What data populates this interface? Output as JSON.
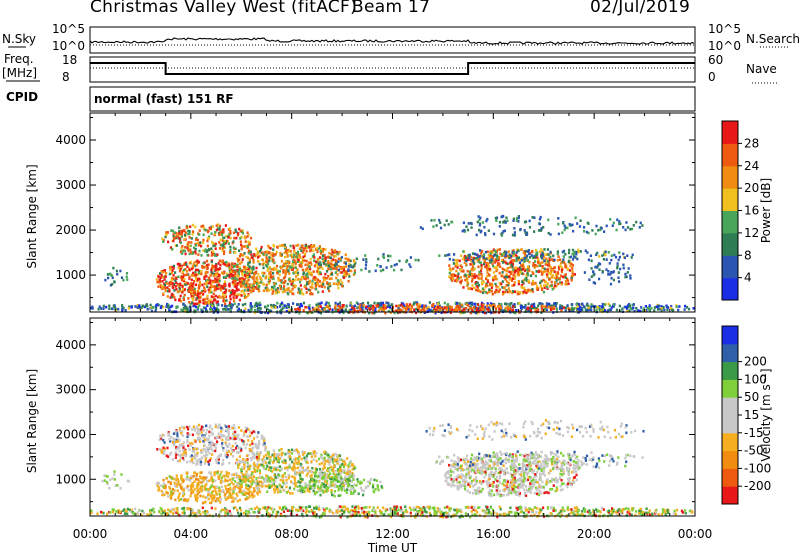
{
  "header": {
    "station": "Christmas Valley West (fitACF)",
    "beam": "Beam 17",
    "date": "02/Jul/2019"
  },
  "top_panels": {
    "nsky_label": "N.Sky",
    "nsearch_label": "N.Search",
    "sky_ticks": [
      "10^5",
      "10^0"
    ],
    "search_ticks": [
      "10^5",
      "10^0"
    ],
    "freq_label_1": "Freq.",
    "freq_label_2": "[MHz]",
    "freq_ticks": [
      "18",
      "8"
    ],
    "nave_label": "Nave",
    "nave_ticks": [
      "60",
      "0"
    ],
    "cpid_label": "CPID",
    "cpid_text": "normal (fast) 151 RF"
  },
  "colors": {
    "power_scale": [
      "#1a2ee6",
      "#2a55b0",
      "#2f7d55",
      "#49a55a",
      "#f0c020",
      "#f08c10",
      "#ee5a10",
      "#e81818"
    ],
    "velocity_scale": [
      "#e81818",
      "#ee5a10",
      "#f08c10",
      "#f5ae20",
      "#c8c8c8",
      "#c8c8c8",
      "#7ecf3a",
      "#3a9a48",
      "#2f5fa8",
      "#1a2ee6"
    ]
  },
  "chart_data": [
    {
      "type": "heatmap",
      "name": "power",
      "ylabel": "Slant Range [km]",
      "yticks": [
        1000,
        2000,
        3000,
        4000
      ],
      "ylim": [
        180,
        4600
      ],
      "xlim": [
        0,
        24
      ],
      "colorbar_label": "Power [dB]",
      "colorbar_ticks": [
        "4",
        "8",
        "12",
        "16",
        "20",
        "24",
        "28"
      ],
      "colorbar_range": [
        0,
        32
      ]
    },
    {
      "type": "heatmap",
      "name": "velocity",
      "ylabel": "Slant Range [km]",
      "yticks": [
        1000,
        2000,
        3000,
        4000
      ],
      "ylim": [
        180,
        4600
      ],
      "xlim": [
        0,
        24
      ],
      "xlabel": "Time UT",
      "xticks": [
        "00:00",
        "04:00",
        "08:00",
        "12:00",
        "16:00",
        "20:00",
        "00:00"
      ],
      "colorbar_label": "Velocity [m s⁻¹]",
      "colorbar_ticks": [
        "-200",
        "-100",
        "-50",
        "-15",
        "15",
        "50",
        "100",
        "200"
      ]
    }
  ]
}
